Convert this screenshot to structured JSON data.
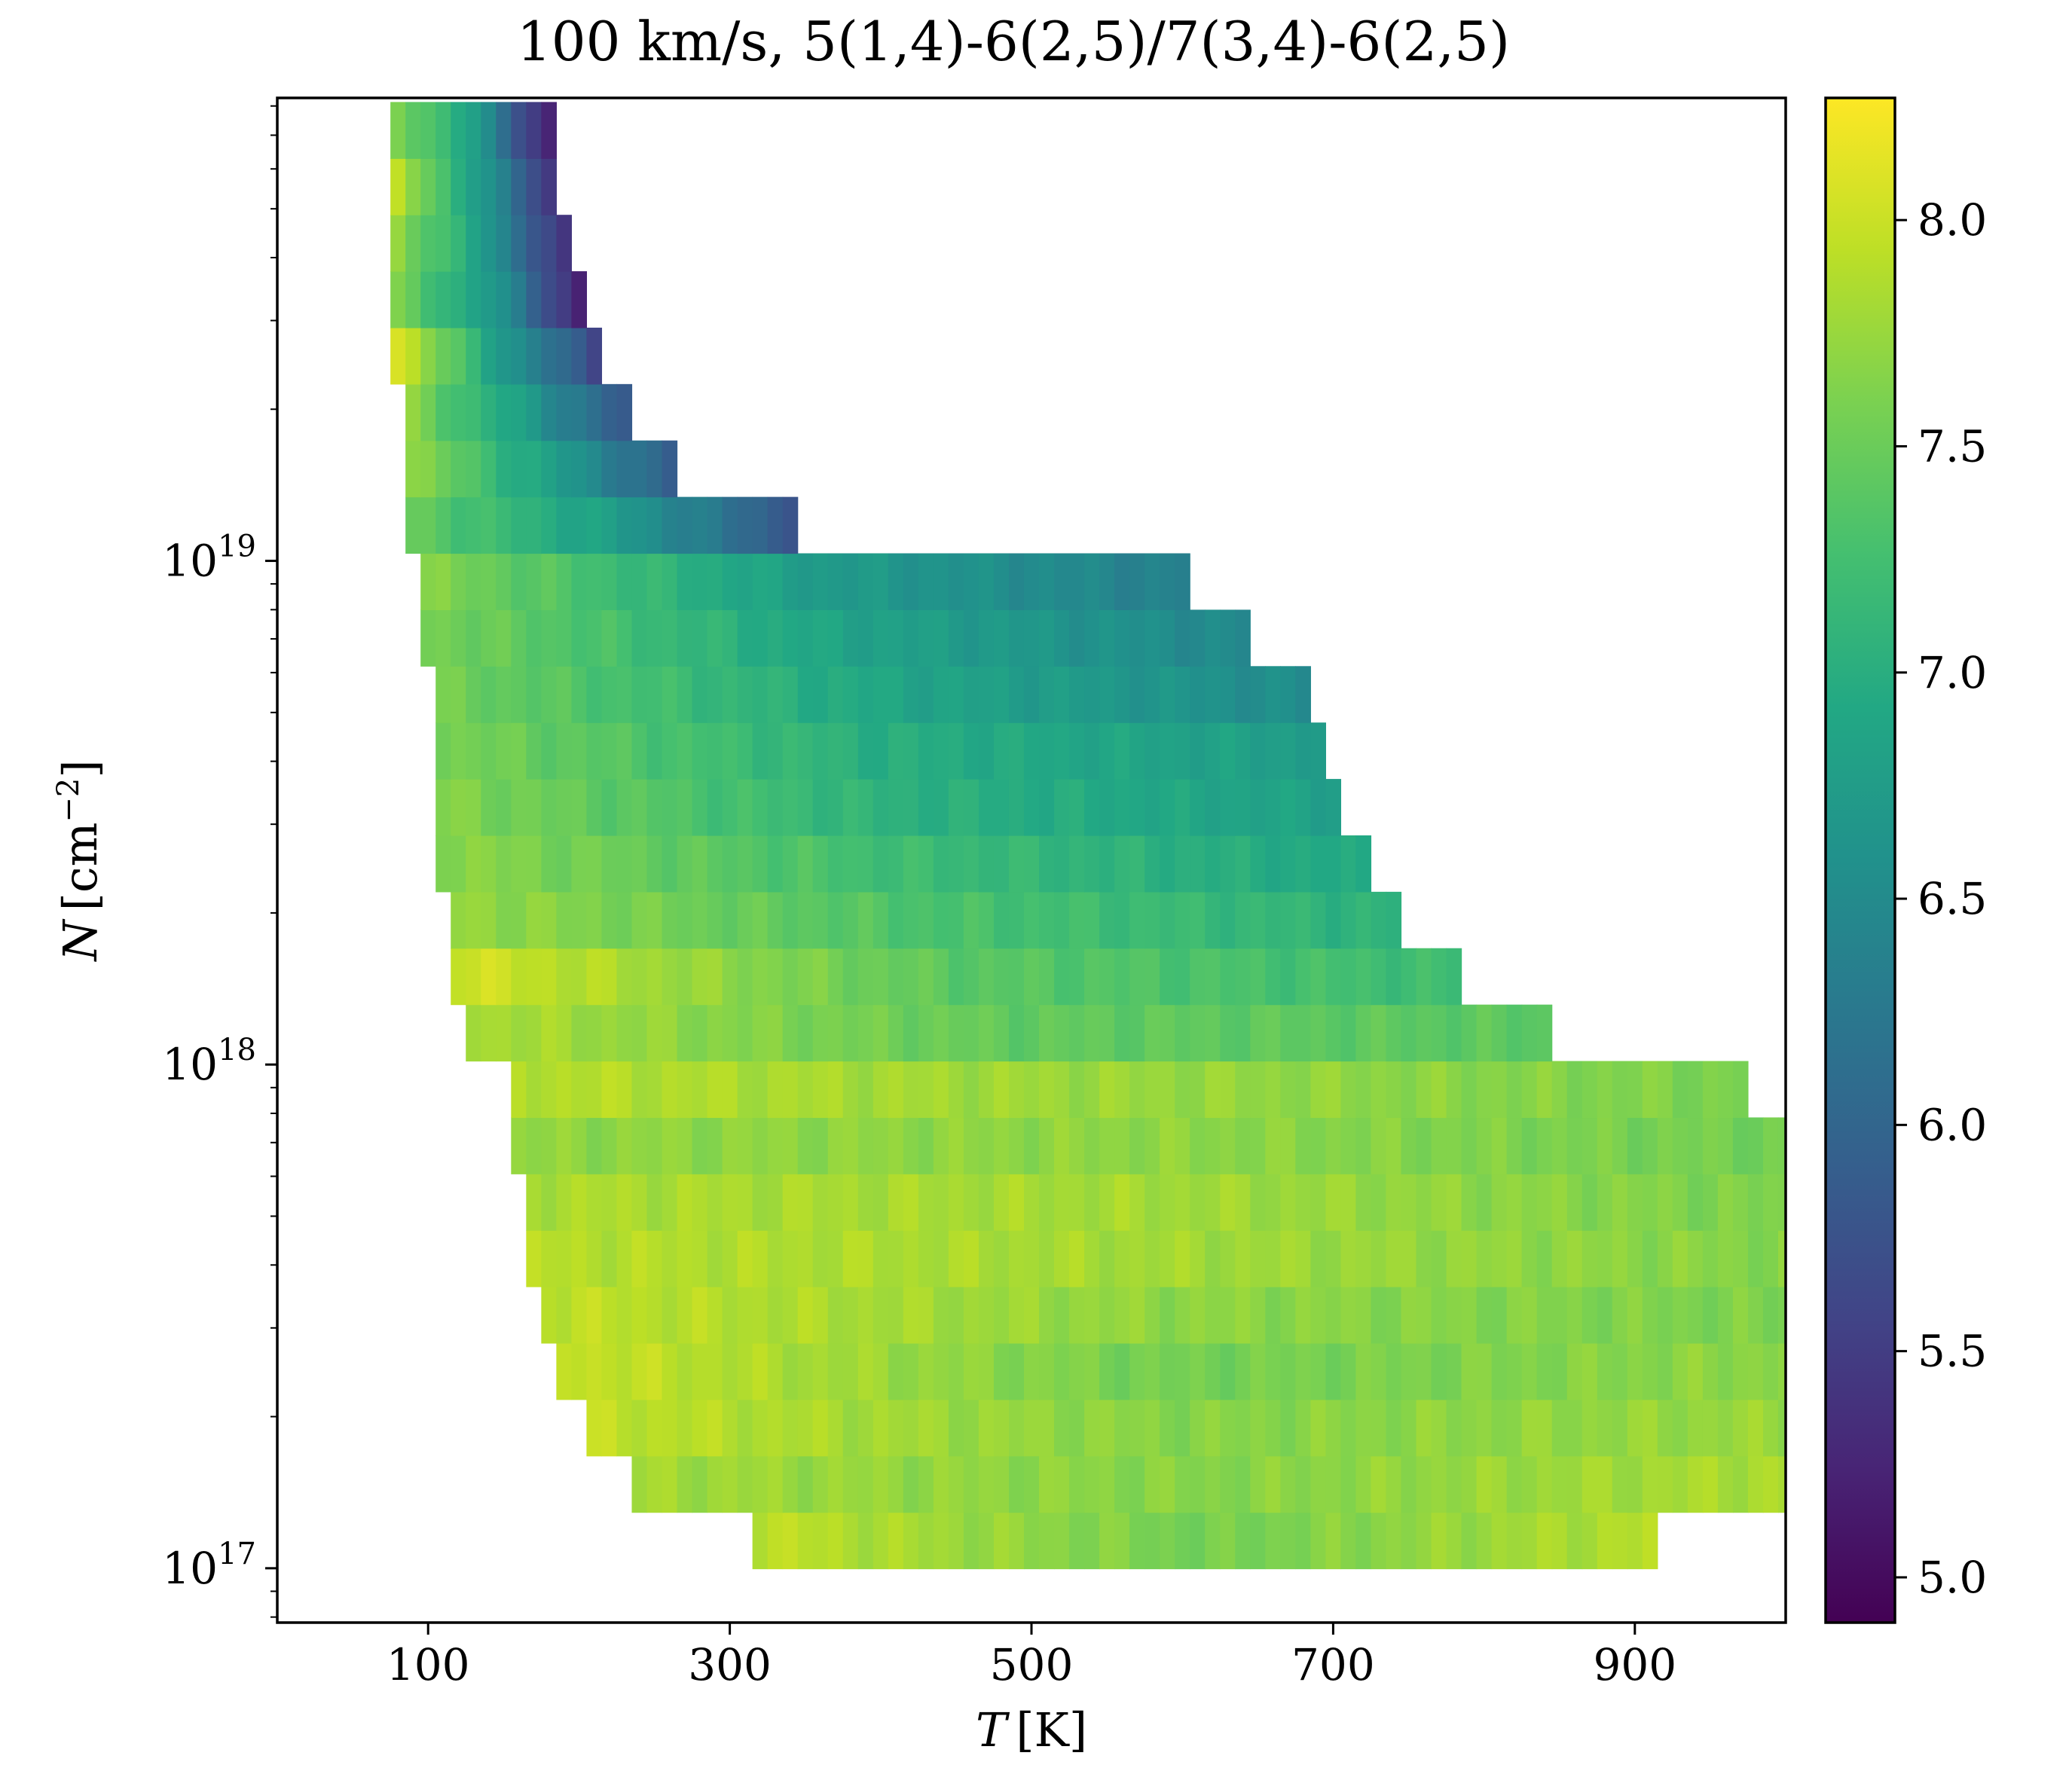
{
  "chart_data": {
    "type": "heatmap",
    "title": "100 km/s, 5(1,4)-6(2,5)/7(3,4)-6(2,5)",
    "xlabel_var": "T",
    "xlabel_unit": "[K]",
    "ylabel_var": "N",
    "ylabel_unit_pre": "[cm",
    "ylabel_unit_exp": "−2",
    "ylabel_unit_post": "]",
    "x_ticks": [
      "100",
      "300",
      "500",
      "700",
      "900"
    ],
    "x_tick_values": [
      100,
      300,
      500,
      700,
      900
    ],
    "y_ticks": [
      {
        "base": "10",
        "exp": "19",
        "value": 1e+19
      },
      {
        "base": "10",
        "exp": "18",
        "value": 1e+18
      },
      {
        "base": "10",
        "exp": "17",
        "value": 1e+17
      }
    ],
    "colorbar_ticks": [
      "5.0",
      "5.5",
      "6.0",
      "6.5",
      "7.0",
      "7.5",
      "8.0"
    ],
    "colorbar_tick_values": [
      5.0,
      5.5,
      6.0,
      6.5,
      7.0,
      7.5,
      8.0
    ],
    "colorbar_range": [
      4.9,
      8.27
    ],
    "colormap": "viridis",
    "xlim": [
      0,
      1000
    ],
    "ylim": [
      7.8e+16,
      8.3e+19
    ],
    "y_scale": "log",
    "grid": false,
    "row_logN_centers": [
      17.055,
      17.167,
      17.279,
      17.391,
      17.503,
      17.615,
      17.727,
      17.839,
      17.951,
      18.063,
      18.175,
      18.287,
      18.399,
      18.511,
      18.623,
      18.735,
      18.847,
      18.959,
      19.071,
      19.183,
      19.295,
      19.407,
      19.519,
      19.631,
      19.743,
      19.855
    ],
    "rows": [
      {
        "t_min": 315,
        "t_max": 915,
        "v_left": 7.95,
        "v_right": 7.9,
        "v_mid": 7.55
      },
      {
        "t_min": 235,
        "t_max": 1000,
        "v_left": 7.8,
        "v_right": 7.85,
        "v_mid": 7.65
      },
      {
        "t_min": 205,
        "t_max": 1000,
        "v_left": 7.95,
        "v_right": 7.75,
        "v_mid": 7.65
      },
      {
        "t_min": 185,
        "t_max": 1000,
        "v_left": 8.0,
        "v_right": 7.7,
        "v_mid": 7.55
      },
      {
        "t_min": 175,
        "t_max": 1000,
        "v_left": 7.95,
        "v_right": 7.6,
        "v_mid": 7.7
      },
      {
        "t_min": 165,
        "t_max": 1000,
        "v_left": 7.9,
        "v_right": 7.65,
        "v_mid": 7.8
      },
      {
        "t_min": 165,
        "t_max": 1000,
        "v_left": 7.85,
        "v_right": 7.6,
        "v_mid": 7.8
      },
      {
        "t_min": 155,
        "t_max": 1000,
        "v_left": 7.7,
        "v_right": 7.55,
        "v_mid": 7.7
      },
      {
        "t_min": 155,
        "t_max": 975,
        "v_left": 7.9,
        "v_right": 7.6,
        "v_mid": 7.75
      },
      {
        "t_min": 125,
        "t_max": 845,
        "v_left": 7.85,
        "v_right": 7.4,
        "v_mid": 7.45
      },
      {
        "t_min": 115,
        "t_max": 785,
        "v_left": 8.05,
        "v_right": 7.2,
        "v_mid": 7.4
      },
      {
        "t_min": 115,
        "t_max": 745,
        "v_left": 7.75,
        "v_right": 7.05,
        "v_mid": 7.3
      },
      {
        "t_min": 105,
        "t_max": 725,
        "v_left": 7.7,
        "v_right": 6.9,
        "v_mid": 7.2
      },
      {
        "t_min": 105,
        "t_max": 705,
        "v_left": 7.65,
        "v_right": 6.8,
        "v_mid": 7.05
      },
      {
        "t_min": 105,
        "t_max": 695,
        "v_left": 7.6,
        "v_right": 6.75,
        "v_mid": 7.0
      },
      {
        "t_min": 105,
        "t_max": 685,
        "v_left": 7.55,
        "v_right": 6.5,
        "v_mid": 6.9
      },
      {
        "t_min": 95,
        "t_max": 645,
        "v_left": 7.6,
        "v_right": 6.45,
        "v_mid": 6.85
      },
      {
        "t_min": 95,
        "t_max": 605,
        "v_left": 7.65,
        "v_right": 6.35,
        "v_mid": 6.75
      },
      {
        "t_min": 85,
        "t_max": 345,
        "v_left": 7.5,
        "v_right": 5.8,
        "v_mid": 6.8
      },
      {
        "t_min": 85,
        "t_max": 265,
        "v_left": 7.75,
        "v_right": 5.85,
        "v_mid": 6.85
      },
      {
        "t_min": 85,
        "t_max": 235,
        "v_left": 7.7,
        "v_right": 5.75,
        "v_mid": 6.8
      },
      {
        "t_min": 75,
        "t_max": 215,
        "v_left": 8.2,
        "v_right": 5.55,
        "v_mid": 6.8
      },
      {
        "t_min": 75,
        "t_max": 205,
        "v_left": 7.6,
        "v_right": 5.1,
        "v_mid": 6.75
      },
      {
        "t_min": 75,
        "t_max": 195,
        "v_left": 7.8,
        "v_right": 5.2,
        "v_mid": 6.8
      },
      {
        "t_min": 75,
        "t_max": 185,
        "v_left": 8.0,
        "v_right": 5.3,
        "v_mid": 6.85
      },
      {
        "t_min": 75,
        "t_max": 185,
        "v_left": 7.75,
        "v_right": 5.0,
        "v_mid": 6.8
      }
    ]
  }
}
